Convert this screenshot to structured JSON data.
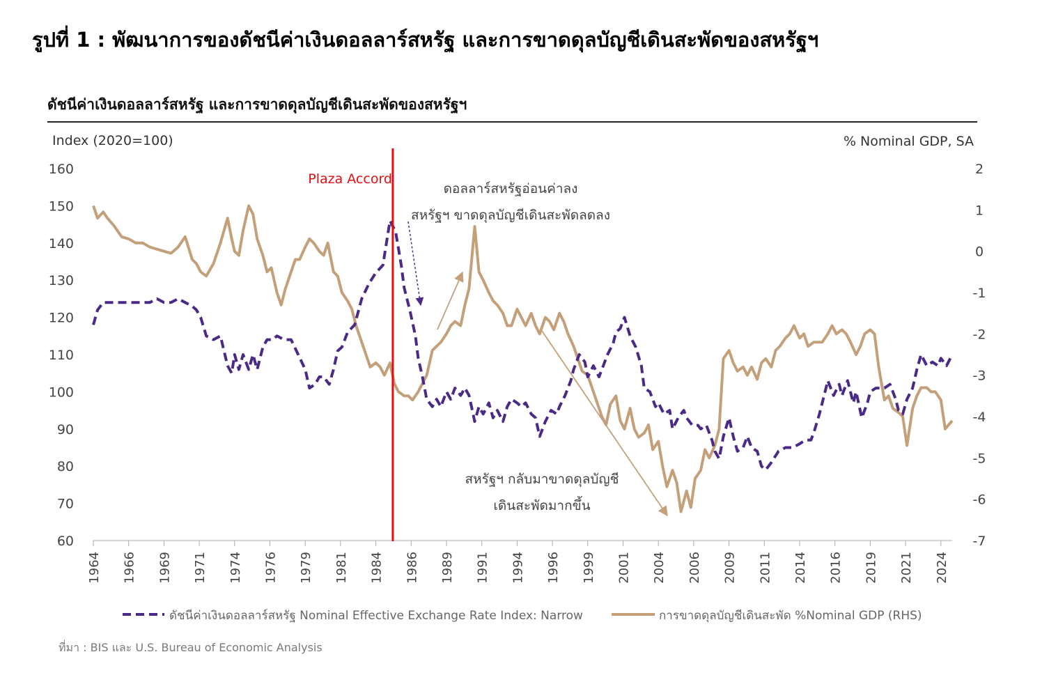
{
  "figure_title": "รูปที่ 1 : พัฒนาการของดัชนีค่าเงินดอลลาร์สหรัฐ และการขาดดุลบัญชีเดินสะพัดของสหรัฐฯ",
  "source": "ที่มา : BIS และ U.S. Bureau of Economic Analysis",
  "colors": {
    "nominal_index": "#4b2a86",
    "current_account": "#c4a07a",
    "plaza": "#e01010"
  },
  "chart_data": {
    "type": "line",
    "title": "ดัชนีค่าเงินดอลลาร์สหรัฐ  และการขาดดุลบัญชีเดินสะพัดของสหรัฐฯ",
    "ylabel": "Index (2020=100)",
    "ylabel_right": "% Nominal GDP, SA",
    "ylim": [
      60,
      160
    ],
    "ylim_right": [
      -7,
      2
    ],
    "xlim": [
      1964,
      2024.8
    ],
    "yticks": [
      "160",
      "150",
      "140",
      "130",
      "120",
      "110",
      "100",
      "90",
      "80",
      "70",
      "60"
    ],
    "yticks_right": [
      "2",
      "1",
      "0",
      "-1",
      "-2",
      "-3",
      "-4",
      "-5",
      "-6",
      "-7"
    ],
    "xticks": [
      "1964",
      "1966",
      "1969",
      "1971",
      "1974",
      "1976",
      "1979",
      "1981",
      "1984",
      "1986",
      "1989",
      "1991",
      "1994",
      "1996",
      "1999",
      "2001",
      "2004",
      "2006",
      "2009",
      "2011",
      "2014",
      "2016",
      "2019",
      "2021",
      "2024"
    ],
    "xtick_positions": [
      1964,
      1966.5,
      1969,
      1971.5,
      1974,
      1976.5,
      1979,
      1981.5,
      1984,
      1986.5,
      1989,
      1991.5,
      1994,
      1996.5,
      1999,
      2001.5,
      2004,
      2006.5,
      2009,
      2011.5,
      2014,
      2016.5,
      2019,
      2021.5,
      2024
    ],
    "grid": false,
    "legend_position": "bottom",
    "series": [
      {
        "name": "ดัชนีค่าเงินดอลลาร์สหรัฐ Nominal Effective Exchange Rate Index: Narrow",
        "axis": "left",
        "style": "dashed",
        "x": [
          1964,
          1964.3,
          1964.7,
          1965.5,
          1966.5,
          1967.5,
          1968,
          1968.5,
          1969,
          1969.5,
          1970,
          1970.5,
          1971,
          1971.3,
          1971.6,
          1972,
          1972.5,
          1973,
          1973.5,
          1973.8,
          1974,
          1974.3,
          1974.6,
          1975,
          1975.3,
          1975.6,
          1976,
          1976.3,
          1976.7,
          1977,
          1977.5,
          1978,
          1978.5,
          1979,
          1979.3,
          1979.7,
          1980,
          1980.3,
          1980.7,
          1981,
          1981.3,
          1981.6,
          1982,
          1982.5,
          1983,
          1983.5,
          1984,
          1984.5,
          1985,
          1985.4,
          1985.8,
          1986,
          1986.4,
          1986.8,
          1987,
          1987.3,
          1987.6,
          1988,
          1988.3,
          1988.6,
          1989,
          1989.3,
          1989.6,
          1990,
          1990.3,
          1990.6,
          1991,
          1991.3,
          1991.6,
          1992,
          1992.3,
          1992.6,
          1993,
          1993.3,
          1993.6,
          1994,
          1994.3,
          1994.6,
          1995,
          1995.3,
          1995.6,
          1996,
          1996.4,
          1996.8,
          1997,
          1997.4,
          1997.8,
          1998,
          1998.4,
          1998.8,
          1999,
          1999.4,
          1999.8,
          2000,
          2000.4,
          2000.8,
          2001,
          2001.3,
          2001.6,
          2002,
          2002.4,
          2002.8,
          2003,
          2003.4,
          2003.8,
          2004,
          2004.4,
          2004.8,
          2005,
          2005.4,
          2005.8,
          2006,
          2006.4,
          2006.8,
          2007,
          2007.4,
          2007.8,
          2008,
          2008.3,
          2008.6,
          2009,
          2009.3,
          2009.6,
          2010,
          2010.3,
          2010.6,
          2011,
          2011.3,
          2011.6,
          2012,
          2012.5,
          2013,
          2013.5,
          2014,
          2014.4,
          2014.8,
          2015,
          2015.4,
          2015.8,
          2016,
          2016.4,
          2016.8,
          2017,
          2017.4,
          2017.8,
          2018,
          2018.4,
          2018.8,
          2019,
          2019.4,
          2019.8,
          2020,
          2020.4,
          2020.8,
          2021,
          2021.3,
          2021.6,
          2022,
          2022.3,
          2022.6,
          2023,
          2023.4,
          2023.8,
          2024,
          2024.4,
          2024.8
        ],
        "values": [
          118,
          122,
          124,
          124,
          124,
          124,
          124,
          125,
          124,
          124,
          125,
          124,
          123,
          122,
          120,
          115,
          114,
          115,
          107,
          105,
          110,
          106,
          110,
          106,
          110,
          106,
          112,
          114,
          114,
          115,
          114,
          114,
          110,
          106,
          101,
          102,
          104,
          104,
          102,
          106,
          111,
          112,
          116,
          118,
          125,
          129,
          132,
          134,
          146,
          143,
          134,
          128,
          122,
          115,
          109,
          104,
          98,
          96,
          98,
          96,
          100,
          98,
          101,
          99,
          101,
          99,
          92,
          96,
          94,
          97,
          93,
          95,
          92,
          96,
          98,
          97,
          96,
          97,
          94,
          93,
          88,
          92,
          95,
          94,
          96,
          99,
          103,
          106,
          110,
          108,
          104,
          107,
          104,
          106,
          110,
          113,
          116,
          117,
          120,
          115,
          112,
          107,
          101,
          100,
          96,
          97,
          94,
          95,
          90,
          93,
          95,
          93,
          91,
          91,
          90,
          91,
          87,
          84,
          82,
          88,
          93,
          88,
          84,
          85,
          88,
          85,
          84,
          80,
          79,
          81,
          84,
          85,
          85,
          86,
          87,
          87,
          89,
          94,
          100,
          103,
          99,
          102,
          99,
          103,
          97,
          100,
          93,
          97,
          100,
          101,
          101,
          101,
          102,
          98,
          95,
          94,
          98,
          101,
          106,
          110,
          107,
          108,
          107,
          109,
          107,
          110
        ]
      },
      {
        "name": "การขาดดุลบัญชีเดินสะพัด %Nominal GDP (RHS)",
        "axis": "right",
        "style": "solid",
        "x": [
          1964,
          1964.3,
          1964.7,
          1965,
          1965.5,
          1966,
          1966.5,
          1967,
          1967.5,
          1968,
          1968.5,
          1969,
          1969.5,
          1970,
          1970.5,
          1971,
          1971.3,
          1971.6,
          1972,
          1972.5,
          1973,
          1973.5,
          1973.8,
          1974,
          1974.3,
          1974.6,
          1975,
          1975.3,
          1975.6,
          1976,
          1976.3,
          1976.6,
          1977,
          1977.3,
          1977.6,
          1978,
          1978.3,
          1978.6,
          1979,
          1979.3,
          1979.6,
          1980,
          1980.3,
          1980.6,
          1981,
          1981.3,
          1981.6,
          1982,
          1982.3,
          1982.6,
          1983,
          1983.3,
          1983.6,
          1984,
          1984.3,
          1984.6,
          1985,
          1985.3,
          1985.6,
          1986,
          1986.3,
          1986.6,
          1987,
          1987.3,
          1987.6,
          1988,
          1988.3,
          1988.6,
          1989,
          1989.3,
          1989.6,
          1990,
          1990.3,
          1990.6,
          1991,
          1991.3,
          1991.6,
          1992,
          1992.3,
          1992.6,
          1993,
          1993.3,
          1993.6,
          1994,
          1994.3,
          1994.6,
          1995,
          1995.3,
          1995.6,
          1996,
          1996.3,
          1996.6,
          1997,
          1997.3,
          1997.6,
          1998,
          1998.3,
          1998.6,
          1999,
          1999.3,
          1999.6,
          2000,
          2000.3,
          2000.6,
          2001,
          2001.3,
          2001.6,
          2002,
          2002.3,
          2002.6,
          2003,
          2003.3,
          2003.6,
          2004,
          2004.3,
          2004.6,
          2005,
          2005.3,
          2005.6,
          2006,
          2006.3,
          2006.6,
          2007,
          2007.3,
          2007.6,
          2008,
          2008.3,
          2008.6,
          2009,
          2009.3,
          2009.6,
          2010,
          2010.3,
          2010.6,
          2011,
          2011.3,
          2011.6,
          2012,
          2012.3,
          2012.6,
          2013,
          2013.3,
          2013.6,
          2014,
          2014.3,
          2014.6,
          2015,
          2015.3,
          2015.6,
          2016,
          2016.3,
          2016.6,
          2017,
          2017.3,
          2017.6,
          2018,
          2018.3,
          2018.6,
          2019,
          2019.3,
          2019.6,
          2020,
          2020.3,
          2020.6,
          2021,
          2021.3,
          2021.6,
          2022,
          2022.3,
          2022.6,
          2023,
          2023.3,
          2023.6,
          2024,
          2024.3,
          2024.8
        ],
        "values": [
          1.1,
          0.8,
          0.95,
          0.8,
          0.6,
          0.35,
          0.3,
          0.2,
          0.2,
          0.1,
          0.05,
          0.0,
          -0.05,
          0.1,
          0.35,
          -0.2,
          -0.3,
          -0.5,
          -0.6,
          -0.3,
          0.2,
          0.8,
          0.3,
          0.0,
          -0.1,
          0.5,
          1.1,
          0.9,
          0.3,
          -0.1,
          -0.5,
          -0.4,
          -1.0,
          -1.3,
          -0.9,
          -0.5,
          -0.2,
          -0.2,
          0.1,
          0.3,
          0.2,
          0.0,
          -0.1,
          0.2,
          -0.5,
          -0.6,
          -1.0,
          -1.2,
          -1.4,
          -1.8,
          -2.2,
          -2.5,
          -2.8,
          -2.7,
          -2.8,
          -3.0,
          -2.7,
          -3.2,
          -3.4,
          -3.5,
          -3.5,
          -3.6,
          -3.4,
          -3.2,
          -3.0,
          -2.4,
          -2.3,
          -2.2,
          -2.0,
          -1.8,
          -1.7,
          -1.8,
          -1.3,
          -0.9,
          0.6,
          -0.5,
          -0.7,
          -1.0,
          -1.2,
          -1.3,
          -1.5,
          -1.8,
          -1.8,
          -1.4,
          -1.6,
          -1.8,
          -1.5,
          -1.8,
          -2.0,
          -1.6,
          -1.7,
          -1.9,
          -1.5,
          -1.7,
          -2.0,
          -2.3,
          -2.6,
          -2.9,
          -3.0,
          -3.3,
          -3.6,
          -4.0,
          -4.2,
          -3.7,
          -3.5,
          -4.1,
          -4.3,
          -3.8,
          -4.3,
          -4.5,
          -4.4,
          -4.2,
          -4.8,
          -4.6,
          -5.2,
          -5.7,
          -5.3,
          -5.6,
          -6.3,
          -5.8,
          -6.2,
          -5.5,
          -5.3,
          -4.8,
          -5.0,
          -4.7,
          -4.3,
          -2.6,
          -2.4,
          -2.7,
          -2.9,
          -2.8,
          -3.0,
          -2.8,
          -3.1,
          -2.7,
          -2.6,
          -2.8,
          -2.4,
          -2.3,
          -2.1,
          -2.0,
          -1.8,
          -2.1,
          -2.0,
          -2.3,
          -2.2,
          -2.2,
          -2.2,
          -2.0,
          -1.8,
          -2.0,
          -1.9,
          -2.0,
          -2.2,
          -2.5,
          -2.3,
          -2.0,
          -1.9,
          -2.0,
          -2.8,
          -3.6,
          -3.5,
          -3.8,
          -3.9,
          -4.0,
          -4.7,
          -3.8,
          -3.5,
          -3.3,
          -3.3,
          -3.4,
          -3.4,
          -3.6,
          -4.3,
          -4.1
        ]
      }
    ],
    "annotations": {
      "plaza_accord": {
        "label": "Plaza Accord",
        "x": 1985.2
      },
      "weaker_dollar_line1": "ดอลลาร์สหรัฐอ่อนค่าลง",
      "weaker_dollar_line2": "สหรัฐฯ ขาดดุลบัญชีเดินสะพัดลดลง",
      "deficit_again_line1": "สหรัฐฯ กลับมาขาดดุลบัญชี",
      "deficit_again_line2": "เดินสะพัดมากขึ้น"
    }
  }
}
